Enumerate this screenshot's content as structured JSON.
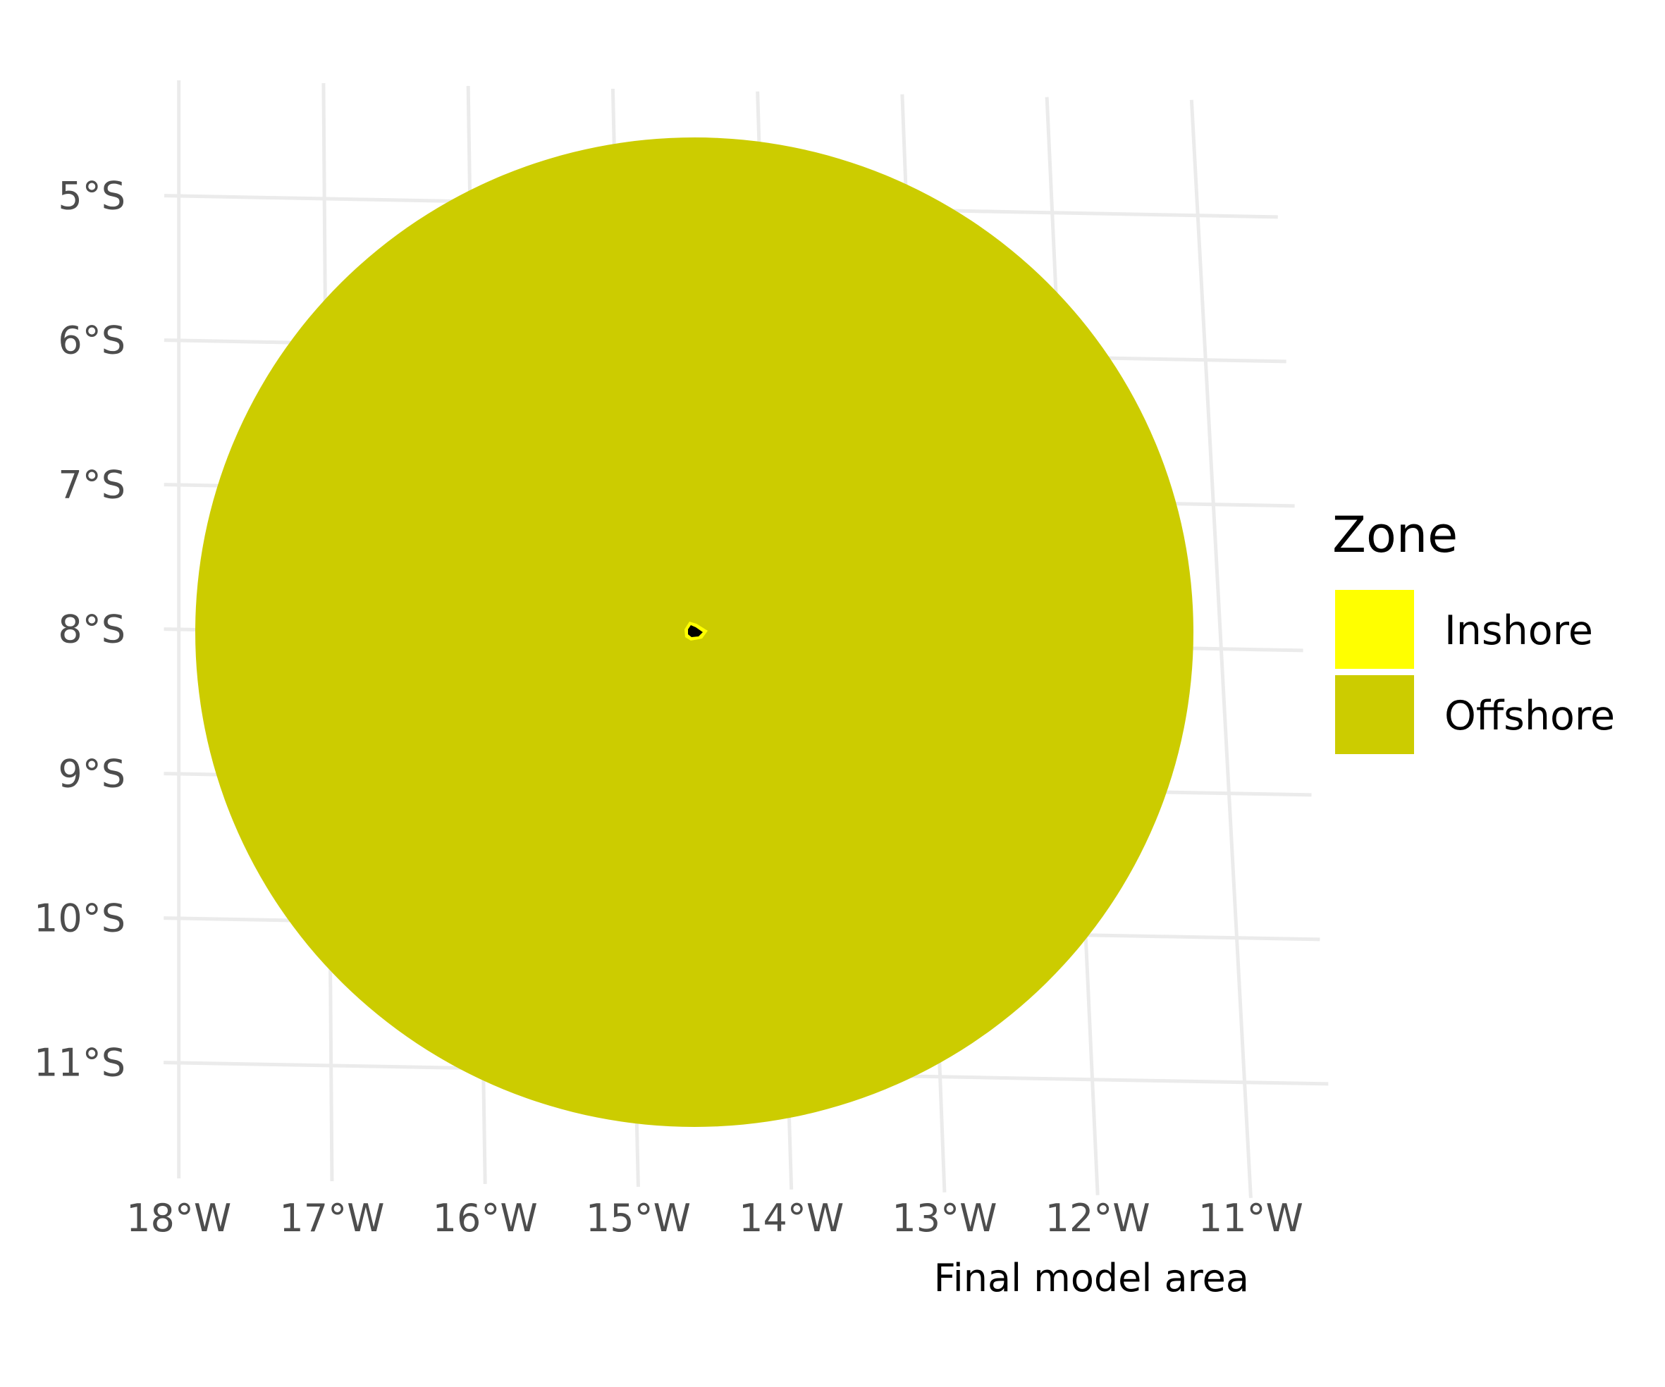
{
  "map": {
    "caption": "Final model area",
    "graticule": {
      "latitudes": [
        -5,
        -6,
        -7,
        -8,
        -9,
        -10,
        -11
      ],
      "longitudes": [
        -18,
        -17,
        -16,
        -15,
        -14,
        -13,
        -12,
        -11
      ],
      "color": "#ebebeb"
    },
    "y_tick_labels": [
      "5°S",
      "6°S",
      "7°S",
      "8°S",
      "9°S",
      "10°S",
      "11°S"
    ],
    "x_tick_labels": [
      "18°W",
      "17°W",
      "16°W",
      "15°W",
      "14°W",
      "13°W",
      "12°W",
      "11°W"
    ],
    "island": {
      "center_lon": -14.3,
      "center_lat": -8.03,
      "fill": "#000000"
    },
    "offshore_area_color": "#cccc00",
    "inshore_area_color": "#ffff00"
  },
  "legend": {
    "title": "Zone",
    "items": [
      {
        "label": "Inshore",
        "color": "#ffff00"
      },
      {
        "label": "Offshore",
        "color": "#cccc00"
      }
    ]
  }
}
